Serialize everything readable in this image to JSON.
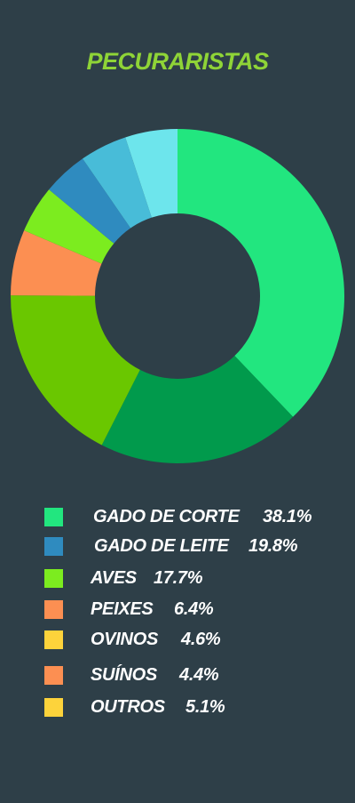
{
  "title": "PECURARISTAS",
  "colors": {
    "background": "#2e3f48",
    "title": "#8fd437"
  },
  "chart_data": {
    "type": "pie",
    "donut": true,
    "slices": [
      {
        "label": "GADO DE CORTE",
        "value": 38.1,
        "color": "#22e67f"
      },
      {
        "label": "GADO DE LEITE",
        "value": 19.8,
        "color": "#019a4c"
      },
      {
        "label": "AVES",
        "value": 17.7,
        "color": "#6ac700"
      },
      {
        "label": "PEIXES",
        "value": 6.4,
        "color": "#fc8f52"
      },
      {
        "label": "OVINOS",
        "value": 4.6,
        "color": "#7cec1f"
      },
      {
        "label": "SUÍNOS",
        "value": 4.4,
        "color": "#2f8bbf"
      },
      {
        "label": "OUTROS",
        "value": 5.1,
        "color": "#6de5ec"
      }
    ],
    "extra_slice_color": "#48bcd8"
  },
  "legend": [
    {
      "label": "GADO DE CORTE",
      "value": "38.1%",
      "color": "#22e67f"
    },
    {
      "label": "GADO DE LEITE",
      "value": "19.8%",
      "color": "#2f8bbf"
    },
    {
      "label": "AVES",
      "value": "17.7%",
      "color": "#7cec1f"
    },
    {
      "label": "PEIXES",
      "value": "6.4%",
      "color": "#fc8f52"
    },
    {
      "label": "OVINOS",
      "value": "4.6%",
      "color": "#fdd33b"
    },
    {
      "label": "SUÍNOS",
      "value": "4.4%",
      "color": "#fc8f52"
    },
    {
      "label": "OUTROS",
      "value": "5.1%",
      "color": "#fdd33b"
    }
  ]
}
